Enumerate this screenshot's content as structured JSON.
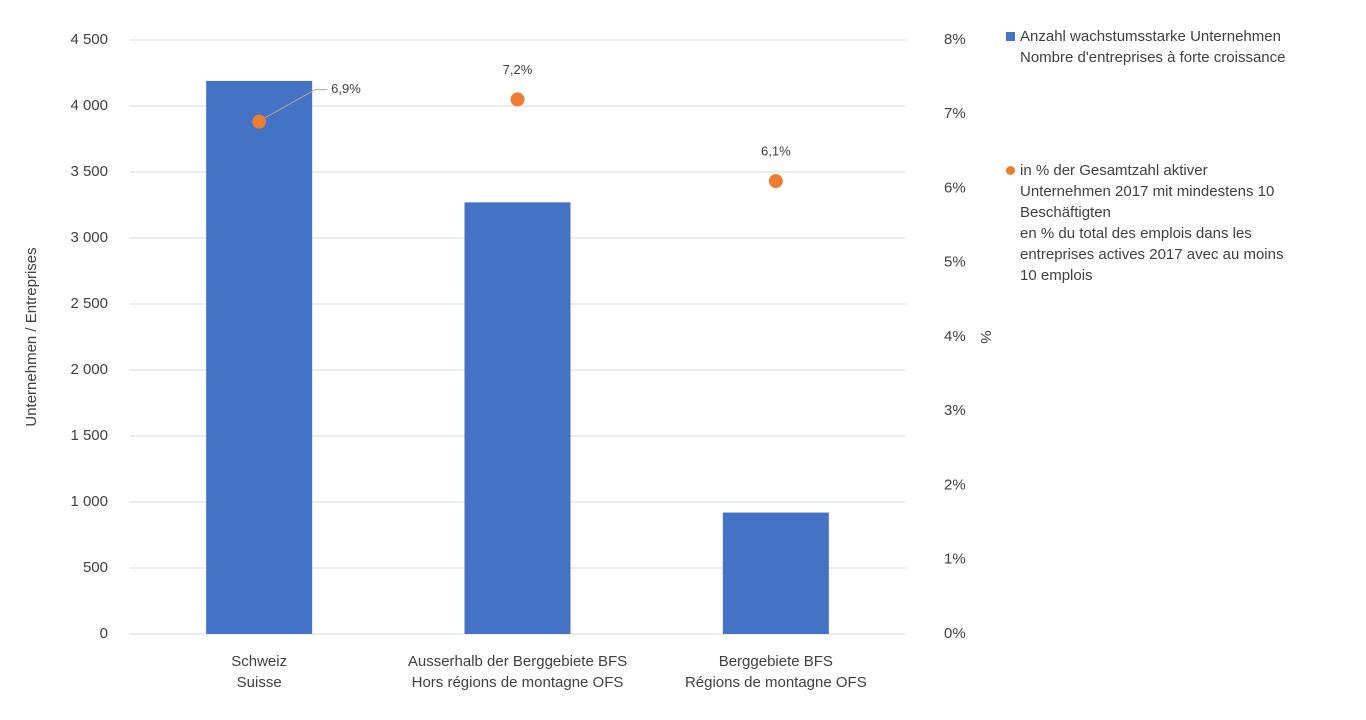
{
  "chart_data": {
    "type": "bar",
    "categories": [
      "Schweiz\nSuisse",
      "Ausserhalb der Berggebiete BFS\nHors régions de montagne OFS",
      "Berggebiete BFS\nRégions de montagne OFS"
    ],
    "series": [
      {
        "name": "Anzahl wachstumsstarke Unternehmen\nNombre d'entreprises à forte croissance",
        "type": "bar",
        "color": "#4472c4",
        "values": [
          4190,
          3270,
          920
        ]
      },
      {
        "name": "in % der Gesamtzahl aktiver\nUnternehmen 2017 mit mindestens 10\nBeschäftigten\nen % du total des emplois dans les\nentreprises actives 2017 avec au moins\n10 emplois",
        "type": "scatter",
        "axis": "y2",
        "color": "#ed7d31",
        "values": [
          6.9,
          7.2,
          6.1
        ],
        "value_labels": [
          "6,9%",
          "7,2%",
          "6,1%"
        ]
      }
    ],
    "ylabel": "Unternehmen / Entreprises",
    "y2label": "%",
    "ylim": [
      0,
      4500
    ],
    "yticks": [
      0,
      500,
      {
        "value": 1000,
        "label": "1 000"
      },
      {
        "value": 1500,
        "label": "1 500"
      },
      {
        "value": 2000,
        "label": "2 000"
      },
      {
        "value": 2500,
        "label": "2 500"
      },
      {
        "value": 3000,
        "label": "3 000"
      },
      {
        "value": 3500,
        "label": "3 500"
      },
      {
        "value": 4000,
        "label": "4 000"
      },
      {
        "value": 4500,
        "label": "4 500"
      }
    ],
    "y2lim": [
      0,
      8
    ],
    "y2ticks": [
      {
        "value": 0,
        "label": "0%"
      },
      {
        "value": 1,
        "label": "1%"
      },
      {
        "value": 2,
        "label": "2%"
      },
      {
        "value": 3,
        "label": "3%"
      },
      {
        "value": 4,
        "label": "4%"
      },
      {
        "value": 5,
        "label": "5%"
      },
      {
        "value": 6,
        "label": "6%"
      },
      {
        "value": 7,
        "label": "7%"
      },
      {
        "value": 8,
        "label": "8%"
      }
    ],
    "grid": true,
    "legend": "right"
  }
}
